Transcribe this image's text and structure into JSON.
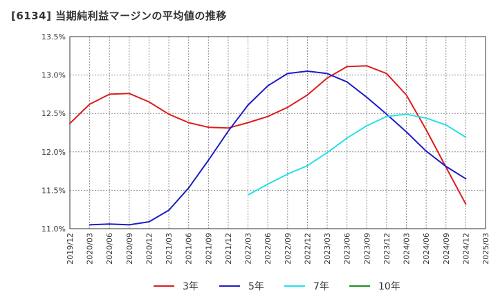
{
  "title": "[6134]  当期純利益マージンの平均値の推移",
  "chart_data": {
    "type": "line",
    "ylim": [
      11.0,
      13.5
    ],
    "yticks": [
      "11.0%",
      "11.5%",
      "12.0%",
      "12.5%",
      "13.0%",
      "13.5%"
    ],
    "ytick_values": [
      11.0,
      11.5,
      12.0,
      12.5,
      13.0,
      13.5
    ],
    "grid": true,
    "legend_position": "bottom",
    "categories": [
      "2019/12",
      "2020/03",
      "2020/06",
      "2020/09",
      "2020/12",
      "2021/03",
      "2021/06",
      "2021/09",
      "2021/12",
      "2022/03",
      "2022/06",
      "2022/09",
      "2022/12",
      "2023/03",
      "2023/06",
      "2023/09",
      "2023/12",
      "2024/03",
      "2024/06",
      "2024/09",
      "2024/12",
      "2025/03"
    ],
    "series": [
      {
        "name": "3年",
        "color": "#dd1c1c",
        "values": [
          12.37,
          12.62,
          12.75,
          12.76,
          12.65,
          12.49,
          12.38,
          12.32,
          12.31,
          12.38,
          12.46,
          12.58,
          12.74,
          12.96,
          13.11,
          13.12,
          13.02,
          12.74,
          12.29,
          11.8,
          11.32,
          null
        ]
      },
      {
        "name": "5年",
        "color": "#1c1cc8",
        "values": [
          null,
          11.05,
          11.06,
          11.05,
          11.09,
          11.24,
          11.53,
          11.89,
          12.27,
          12.61,
          12.86,
          13.02,
          13.05,
          13.02,
          12.91,
          12.71,
          12.49,
          12.26,
          12.01,
          11.81,
          11.65,
          null
        ]
      },
      {
        "name": "7年",
        "color": "#22e0e8",
        "values": [
          null,
          null,
          null,
          null,
          null,
          null,
          null,
          null,
          null,
          11.44,
          11.58,
          11.71,
          11.82,
          11.99,
          12.18,
          12.34,
          12.46,
          12.49,
          12.44,
          12.35,
          12.19,
          null
        ]
      },
      {
        "name": "10年",
        "color": "#1e8c1e",
        "values": [
          null,
          null,
          null,
          null,
          null,
          null,
          null,
          null,
          null,
          null,
          null,
          null,
          null,
          null,
          null,
          null,
          null,
          null,
          null,
          null,
          null,
          null
        ]
      }
    ]
  }
}
